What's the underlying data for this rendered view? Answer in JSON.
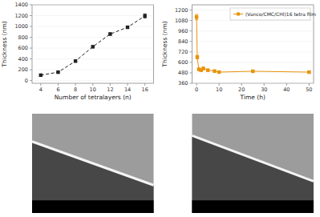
{
  "chart_data": [
    {
      "type": "line",
      "x": [
        4,
        6,
        8,
        10,
        12,
        14,
        16
      ],
      "series": [
        {
          "values": [
            100,
            155,
            360,
            625,
            860,
            985,
            1195
          ],
          "errors": [
            12,
            12,
            18,
            18,
            22,
            22,
            38
          ],
          "color": "#222222",
          "marker": "square",
          "line_style": "dashed"
        }
      ],
      "xlabel": "Number of tetralayers (n)",
      "ylabel": "Thickness (nm)",
      "xlim": [
        3,
        17
      ],
      "ylim": [
        -50,
        1400
      ],
      "xticks": [
        4,
        6,
        8,
        10,
        12,
        14,
        16
      ],
      "yticks": [
        0,
        200,
        400,
        600,
        800,
        1000,
        1200,
        1400
      ]
    },
    {
      "type": "line",
      "x": [
        0,
        0.3,
        1,
        2,
        3,
        5,
        8,
        10,
        25,
        50
      ],
      "series": [
        {
          "name": "(Vanco/CMC/CHI)16 tetra film",
          "values": [
            1120,
            660,
            520,
            510,
            530,
            510,
            500,
            488,
            498,
            488
          ],
          "errors": [
            30,
            20,
            15,
            15,
            15,
            12,
            12,
            12,
            12,
            12
          ],
          "color": "#e8930a",
          "marker": "square",
          "line_style": "solid"
        }
      ],
      "xlabel": "Time (h)",
      "ylabel": "Thickness (nm)",
      "xlim": [
        -2,
        52
      ],
      "ylim": [
        360,
        1260
      ],
      "xticks": [
        0,
        10,
        20,
        30,
        40,
        50
      ],
      "yticks": [
        360,
        480,
        600,
        720,
        840,
        960,
        1080,
        1200
      ],
      "legend": "upper right"
    }
  ]
}
